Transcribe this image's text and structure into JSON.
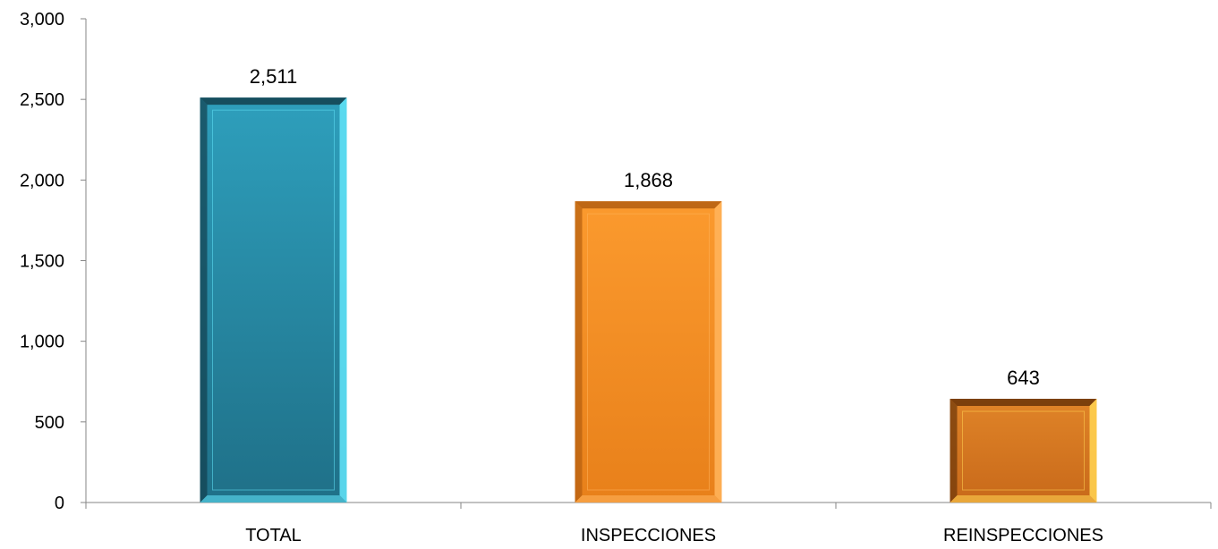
{
  "chart_data": {
    "type": "bar",
    "categories": [
      "TOTAL",
      "INSPECCIONES",
      "REINSPECCIONES"
    ],
    "values": [
      2511,
      1868,
      643
    ],
    "data_labels": [
      "2,511",
      "1,868",
      "643"
    ],
    "yticks": [
      "0",
      "500",
      "1,000",
      "1,500",
      "2,000",
      "2,500",
      "3,000"
    ],
    "ylim": [
      0,
      3000
    ],
    "title": "",
    "xlabel": "",
    "ylabel": "",
    "grid": false,
    "legend": "none",
    "colors": [
      "#2b98b4",
      "#f7901e",
      "#d9781e"
    ]
  }
}
